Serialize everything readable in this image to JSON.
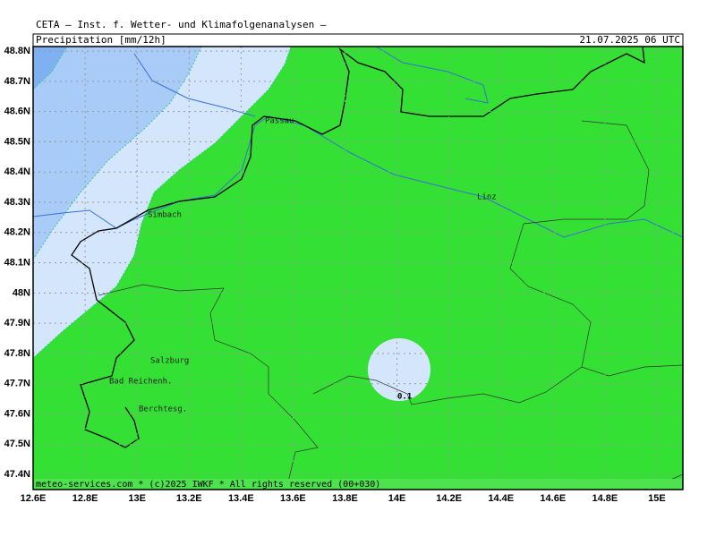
{
  "header": "CETA — Inst. f. Wetter- und Klimafolgenanalysen —",
  "title": "Precipitation [mm/12h]",
  "date": "21.07.2025 06 UTC",
  "footer": "meteo-services.com * (c)2025 IWKF * All rights reserved (00+030)",
  "contour_label": "0.1",
  "places": [
    "Passau",
    "Linz",
    "Simbach",
    "Salzburg",
    "Bad Reichenh.",
    "Berchtesg."
  ],
  "xlim": [
    12.6,
    15.1
  ],
  "ylim": [
    47.35,
    48.815
  ],
  "xticks": [
    {
      "value": 12.6,
      "label": "12.6E"
    },
    {
      "value": 12.8,
      "label": "12.8E"
    },
    {
      "value": 13,
      "label": "13E"
    },
    {
      "value": 13.2,
      "label": "13.2E"
    },
    {
      "value": 13.4,
      "label": "13.4E"
    },
    {
      "value": 13.6,
      "label": "13.6E"
    },
    {
      "value": 13.8,
      "label": "13.8E"
    },
    {
      "value": 14,
      "label": "14E"
    },
    {
      "value": 14.2,
      "label": "14.2E"
    },
    {
      "value": 14.4,
      "label": "14.4E"
    },
    {
      "value": 14.6,
      "label": "14.6E"
    },
    {
      "value": 14.8,
      "label": "14.8E"
    },
    {
      "value": 15,
      "label": "15E"
    }
  ],
  "yticks": [
    {
      "value": 48.8,
      "label": "48.8N"
    },
    {
      "value": 48.7,
      "label": "48.7N"
    },
    {
      "value": 48.6,
      "label": "48.6N"
    },
    {
      "value": 48.5,
      "label": "48.5N"
    },
    {
      "value": 48.4,
      "label": "48.4N"
    },
    {
      "value": 48.3,
      "label": "48.3N"
    },
    {
      "value": 48.2,
      "label": "48.2N"
    },
    {
      "value": 48.1,
      "label": "48.1N"
    },
    {
      "value": 48,
      "label": "48N"
    },
    {
      "value": 47.9,
      "label": "47.9N"
    },
    {
      "value": 47.8,
      "label": "47.8N"
    },
    {
      "value": 47.7,
      "label": "47.7N"
    },
    {
      "value": 47.6,
      "label": "47.6N"
    },
    {
      "value": 47.5,
      "label": "47.5N"
    },
    {
      "value": 47.4,
      "label": "47.4N"
    }
  ]
}
